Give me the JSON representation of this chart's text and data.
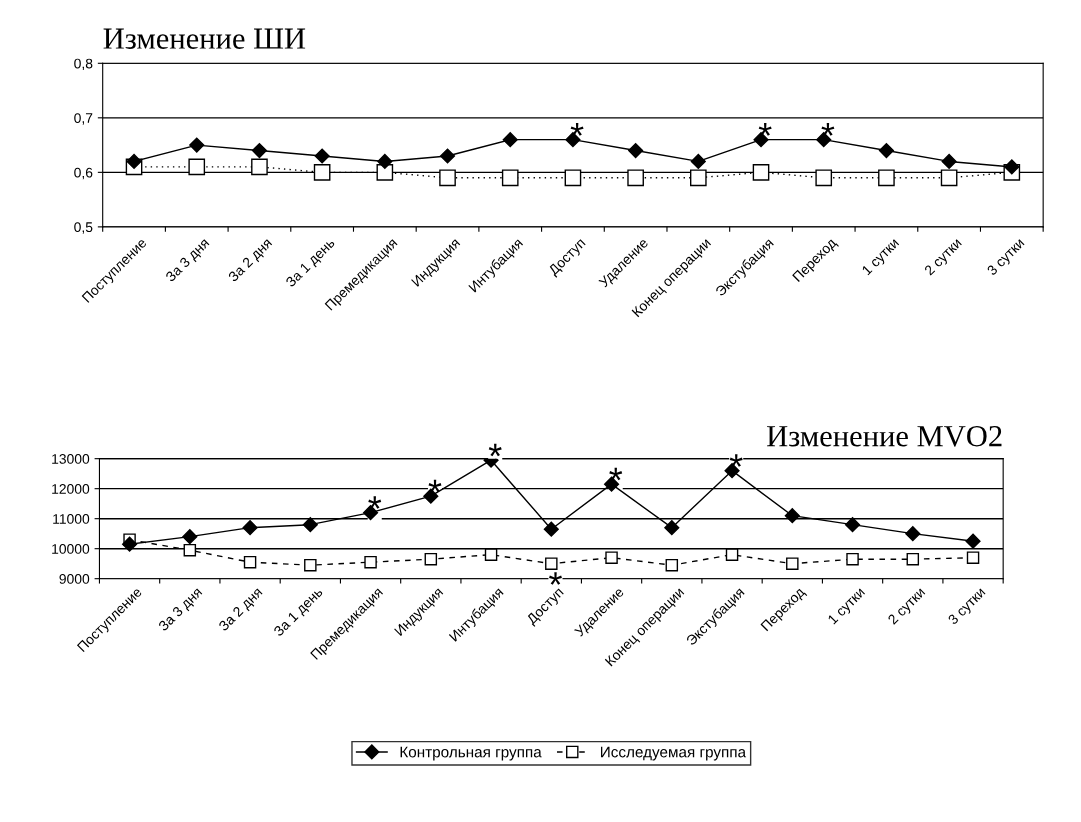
{
  "chart_data": [
    {
      "type": "line",
      "title": "Изменение ШИ",
      "categories": [
        "Поступление",
        "За 3 дня",
        "За 2 дня",
        "За 1 день",
        "Премедикация",
        "Индукция",
        "Интубация",
        "Доступ",
        "Удаление",
        "Конец операции",
        "Экстубация",
        "Переход",
        "1 сутки",
        "2 сутки",
        "3 сутки"
      ],
      "series": [
        {
          "color": "#000000",
          "marker": "diamond",
          "line_style": "solid",
          "values": [
            0.62,
            0.65,
            0.64,
            0.63,
            0.62,
            0.63,
            0.66,
            0.66,
            0.64,
            0.62,
            0.66,
            0.66,
            0.64,
            0.62,
            0.61
          ]
        },
        {
          "color": "#000000",
          "marker": "square",
          "line_style": "dotted",
          "values": [
            0.61,
            0.61,
            0.61,
            0.6,
            0.6,
            0.59,
            0.59,
            0.59,
            0.59,
            0.59,
            0.6,
            0.59,
            0.59,
            0.59,
            0.6
          ]
        }
      ],
      "ylim": [
        0.5,
        0.8
      ],
      "yticks": [
        {
          "value": 0.5,
          "label": "0,5"
        },
        {
          "value": 0.6,
          "label": "0,6"
        },
        {
          "value": 0.7,
          "label": "0,7"
        },
        {
          "value": 0.8,
          "label": "0,8"
        }
      ],
      "grid": "y",
      "legend": false,
      "annotations": [
        {
          "text": "*",
          "x": "Доступ",
          "y": 0.66
        },
        {
          "text": "*",
          "x": "Экстубация",
          "y": 0.66
        },
        {
          "text": "*",
          "x": "Переход",
          "y": 0.66
        }
      ]
    },
    {
      "type": "line",
      "title": "Изменение MVO2",
      "categories": [
        "Поступление",
        "За 3 дня",
        "За 2 дня",
        "За 1 день",
        "Премедикация",
        "Индукция",
        "Интубация",
        "Доступ",
        "Удаление",
        "Конец операции",
        "Экстубация",
        "Переход",
        "1 сутки",
        "2 сутки",
        "3 сутки"
      ],
      "series": [
        {
          "name": "Контрольная группа",
          "color": "#000000",
          "marker": "diamond",
          "line_style": "solid",
          "values": [
            10150,
            10400,
            10700,
            10800,
            11200,
            11750,
            12950,
            10650,
            12150,
            10700,
            12600,
            11100,
            10800,
            10500,
            10250
          ]
        },
        {
          "name": "Исследуемая группа",
          "color": "#000000",
          "marker": "square",
          "line_style": "dashed",
          "values": [
            10300,
            9950,
            9550,
            9450,
            9550,
            9650,
            9800,
            9500,
            9700,
            9450,
            9800,
            9500,
            9650,
            9650,
            9700
          ]
        }
      ],
      "ylim": [
        9000,
        13000
      ],
      "yticks": [
        9000,
        10000,
        11000,
        12000,
        13000
      ],
      "grid": "y",
      "legend": "bottom",
      "annotations": [
        {
          "text": "*",
          "x": "Премедикация",
          "y": 11200
        },
        {
          "text": "*",
          "x": "Индукция",
          "y": 11750
        },
        {
          "text": "*",
          "x": "Интубация",
          "y": 12950
        },
        {
          "text": "*",
          "x": "Доступ",
          "y": 9500
        },
        {
          "text": "*",
          "x": "Удаление",
          "y": 12150
        },
        {
          "text": "*",
          "x": "Экстубация",
          "y": 12600
        }
      ]
    }
  ]
}
